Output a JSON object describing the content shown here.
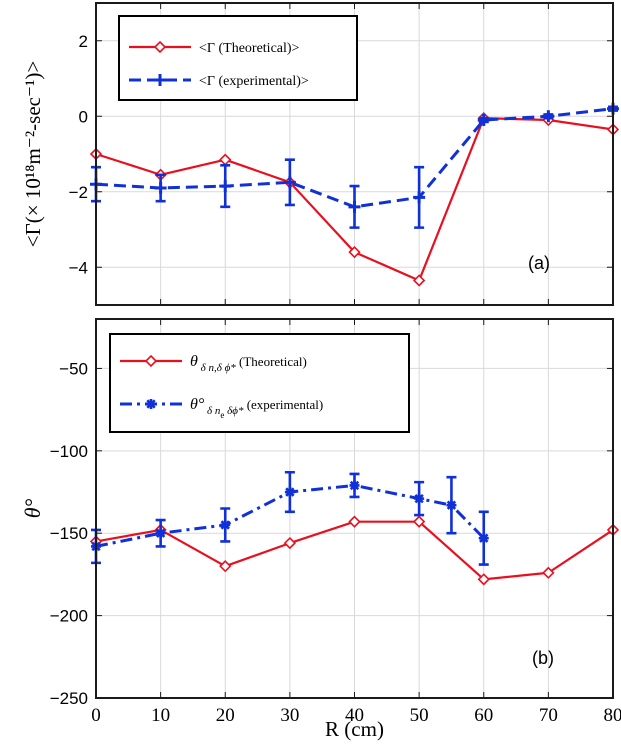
{
  "colors": {
    "theoretical": "#e8101e",
    "experimental": "#1030d8",
    "grid": "#d9d9d9",
    "axis": "#1a1a1a"
  },
  "figure": {
    "xlabel": "R (cm)"
  },
  "chart_data": [
    {
      "id": "a",
      "type": "line",
      "panel_label": "(a)",
      "ylabel": "<Γ(× 10¹⁸m⁻²-sec⁻¹)>",
      "xlim": [
        0,
        80
      ],
      "ylim": [
        -5,
        3
      ],
      "x_ticks": [
        0,
        10,
        20,
        30,
        40,
        50,
        60,
        70,
        80
      ],
      "y_ticks": [
        -4,
        -2,
        0,
        2
      ],
      "grid": true,
      "legend_position": "top-left",
      "series": [
        {
          "name": "<Γ (Theoretical)>",
          "style": "solid",
          "marker": "diamond",
          "color": "#e8101e",
          "x": [
            0,
            10,
            20,
            30,
            40,
            50,
            60,
            70,
            80
          ],
          "y": [
            -1,
            -1.55,
            -1.15,
            -1.75,
            -3.6,
            -4.35,
            -0.05,
            -0.1,
            -0.35
          ]
        },
        {
          "name": "<Γ (experimental)>",
          "style": "dashed",
          "marker": "plus",
          "color": "#1030d8",
          "x": [
            0,
            10,
            20,
            30,
            40,
            50,
            60,
            70,
            80
          ],
          "y": [
            -1.8,
            -1.9,
            -1.85,
            -1.75,
            -2.4,
            -2.15,
            -0.1,
            0,
            0.2
          ],
          "yerr": [
            0.45,
            0.35,
            0.55,
            0.6,
            0.55,
            0.8,
            0.05,
            0.05,
            0.05
          ]
        }
      ]
    },
    {
      "id": "b",
      "type": "line",
      "panel_label": "(b)",
      "ylabel": "θ°",
      "xlim": [
        0,
        80
      ],
      "ylim": [
        -250,
        -20
      ],
      "x_ticks": [
        0,
        10,
        20,
        30,
        40,
        50,
        60,
        70,
        80
      ],
      "y_ticks": [
        -250,
        -200,
        -150,
        -100,
        -50
      ],
      "grid": true,
      "legend_position": "top-left",
      "series": [
        {
          "name": "θ",
          "name_sub": "δ n,δ ϕ*",
          "name_note": "(Theoretical)",
          "style": "solid",
          "marker": "diamond",
          "color": "#e8101e",
          "x": [
            0,
            10,
            20,
            30,
            40,
            50,
            60,
            70,
            80
          ],
          "y": [
            -155,
            -148,
            -170,
            -156,
            -143,
            -143,
            -178,
            -174,
            -148
          ]
        },
        {
          "name": "θ°",
          "name_sub": "δ n",
          "name_subsub": "e",
          "name_sub2": "δϕ*",
          "name_note": "(experimental)",
          "style": "dashdot",
          "marker": "star",
          "color": "#1030d8",
          "x": [
            0,
            10,
            20,
            30,
            40,
            50,
            55,
            60
          ],
          "y": [
            -158,
            -150,
            -145,
            -125,
            -121,
            -129,
            -133,
            -153
          ],
          "yerr": [
            10,
            8,
            10,
            12,
            7,
            10,
            17,
            16
          ]
        }
      ]
    }
  ]
}
